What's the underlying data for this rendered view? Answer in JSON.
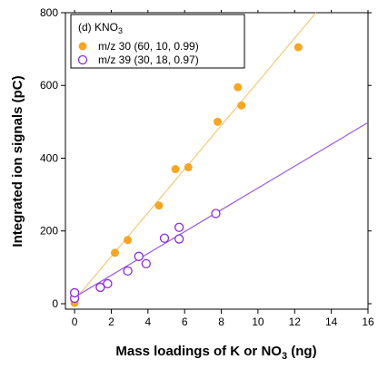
{
  "chart_data": {
    "type": "scatter",
    "panel_label": "(d) KNO",
    "panel_label_sub": "3",
    "xlabel": "Mass loadings of K or NO",
    "xlabel_sub": "3",
    "xlabel_suffix": " (ng)",
    "ylabel": "Integrated ion signals (pC)",
    "xlim": [
      -0.5,
      16
    ],
    "ylim": [
      -15,
      800
    ],
    "xticks": [
      0,
      2,
      4,
      6,
      8,
      10,
      12,
      14,
      16
    ],
    "yticks": [
      0,
      200,
      400,
      600,
      800
    ],
    "grid": false,
    "legend_position": "top-left",
    "series": [
      {
        "name": "m/z 30 (60, 10, 0.99)",
        "marker": "filled-circle",
        "color": "#F5A623",
        "line_color": "#F5C878",
        "fit": {
          "slope": 60,
          "intercept": 10
        },
        "x": [
          0.0,
          0.0,
          2.2,
          2.9,
          4.6,
          5.5,
          6.2,
          7.8,
          8.9,
          9.1,
          12.2
        ],
        "y": [
          2,
          12,
          140,
          175,
          270,
          370,
          375,
          500,
          595,
          545,
          705
        ]
      },
      {
        "name": "m/z 39 (30, 18, 0.97)",
        "marker": "open-circle",
        "color": "#8A2BE2",
        "line_color": "#9B59E8",
        "fit": {
          "slope": 30,
          "intercept": 18
        },
        "x": [
          0.0,
          0.0,
          1.4,
          1.8,
          2.9,
          3.5,
          3.9,
          4.9,
          5.7,
          5.7,
          7.7
        ],
        "y": [
          15,
          30,
          45,
          55,
          90,
          130,
          110,
          180,
          210,
          178,
          248
        ]
      }
    ]
  }
}
